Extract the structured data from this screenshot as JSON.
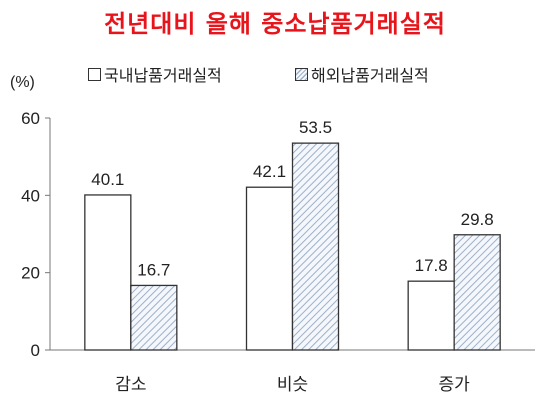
{
  "chart_data": {
    "type": "bar",
    "title": "전년대비 올해 중소납품거래실적",
    "unit_label": "(%)",
    "categories": [
      "감소",
      "비슷",
      "증가"
    ],
    "series": [
      {
        "name": "국내납품거래실적",
        "values": [
          40.1,
          42.1,
          17.8
        ],
        "style": "plain"
      },
      {
        "name": "해외납품거래실적",
        "values": [
          16.7,
          53.5,
          29.8
        ],
        "style": "hatched"
      }
    ],
    "ylim": [
      0,
      60
    ],
    "yticks": [
      0,
      20,
      40,
      60
    ],
    "grid": false,
    "legend_position": "top",
    "colors": {
      "title": "#e8141b",
      "bar_edge": "#333333",
      "hatch_line": "#9fb0c8",
      "hatch_bg": "#f4f7fb"
    }
  }
}
